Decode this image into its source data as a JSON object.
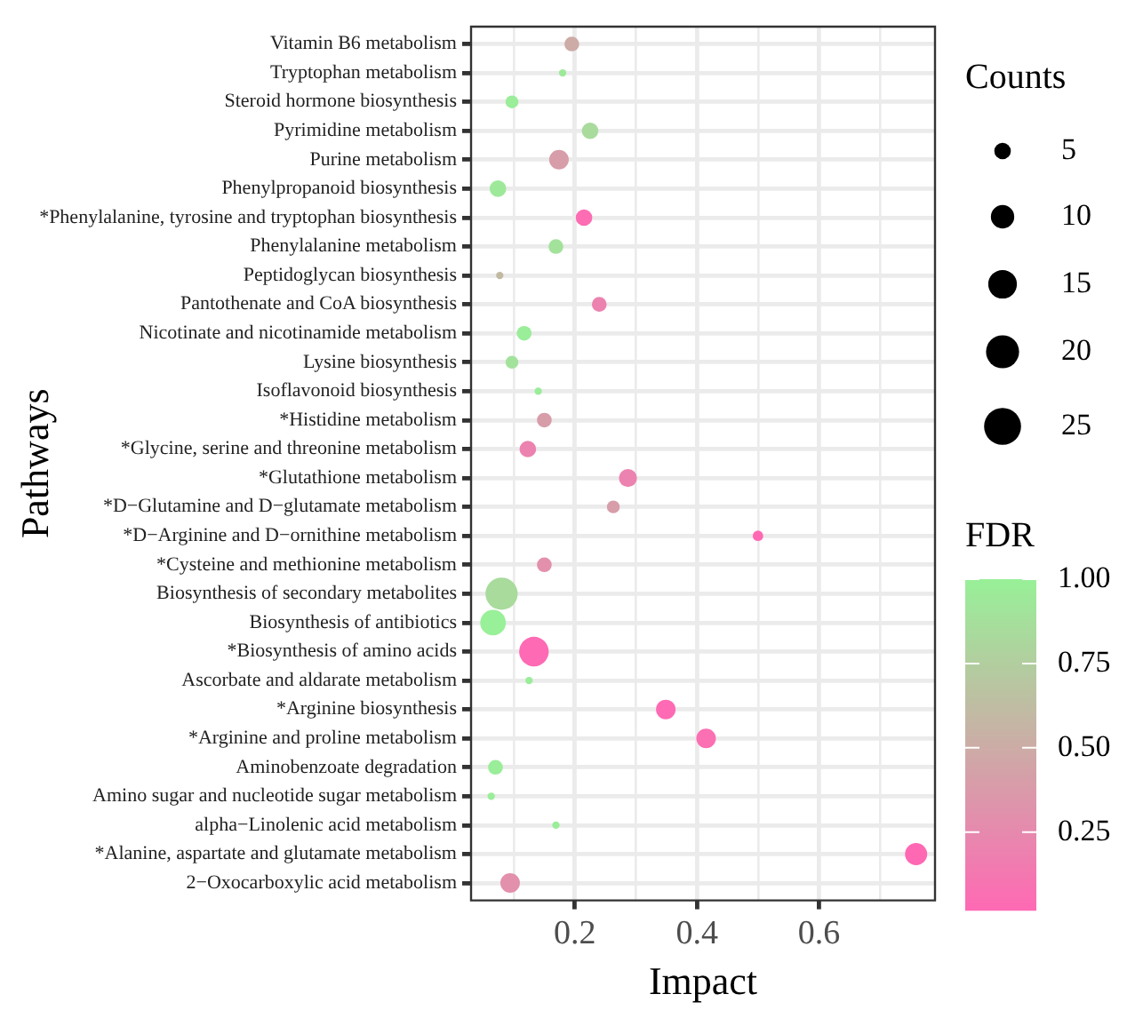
{
  "chart_data": {
    "type": "bubble",
    "xlabel": "Impact",
    "ylabel": "Pathways",
    "legend_title": "Counts",
    "clabel": "FDR",
    "categories": [
      "Vitamin B6 metabolism",
      "Tryptophan metabolism",
      "Steroid hormone biosynthesis",
      "Pyrimidine metabolism",
      "Purine metabolism",
      "Phenylpropanoid biosynthesis",
      "*Phenylalanine, tyrosine and tryptophan biosynthesis",
      "Phenylalanine metabolism",
      "Peptidoglycan biosynthesis",
      "Pantothenate and CoA biosynthesis",
      "Nicotinate and nicotinamide metabolism",
      "Lysine biosynthesis",
      "Isoflavonoid biosynthesis",
      "*Histidine metabolism",
      "*Glycine, serine and threonine metabolism",
      "*Glutathione metabolism",
      "*D−Glutamine and D−glutamate metabolism",
      "*D−Arginine and D−ornithine metabolism",
      "*Cysteine and methionine metabolism",
      "Biosynthesis of secondary metabolites",
      "Biosynthesis of antibiotics",
      "*Biosynthesis of amino acids",
      "Ascorbate and aldarate metabolism",
      "*Arginine biosynthesis",
      "*Arginine and proline metabolism",
      "Aminobenzoate degradation",
      "Amino sugar and nucleotide sugar metabolism",
      "alpha−Linolenic acid metabolism",
      "*Alanine, aspartate and glutamate metabolism",
      "2−Oxocarboxylic acid metabolism"
    ],
    "orientation": "horizontal",
    "values": [
      0.195,
      0.18,
      0.097,
      0.225,
      0.174,
      0.074,
      0.215,
      0.169,
      0.077,
      0.24,
      0.117,
      0.097,
      0.14,
      0.15,
      0.123,
      0.287,
      0.263,
      0.5,
      0.15,
      0.08,
      0.066,
      0.133,
      0.125,
      0.349,
      0.415,
      0.07,
      0.063,
      0.169,
      0.759,
      0.094
    ],
    "sizes": [
      4,
      1,
      3,
      5,
      7,
      5,
      5,
      4,
      1,
      4,
      4,
      3,
      1,
      4,
      5,
      6,
      3,
      2,
      4,
      19,
      12,
      16,
      1,
      7,
      7,
      4,
      1,
      1,
      9,
      7
    ],
    "cvalues": [
      0.5,
      0.95,
      0.98,
      0.85,
      0.4,
      0.95,
      0.05,
      0.9,
      0.6,
      0.2,
      0.98,
      0.9,
      0.98,
      0.4,
      0.2,
      0.2,
      0.4,
      0.02,
      0.3,
      0.85,
      1.0,
      0.03,
      0.98,
      0.03,
      0.06,
      0.98,
      0.98,
      0.98,
      0.02,
      0.3
    ],
    "clim": [
      0.02,
      1.0
    ],
    "cticks": [
      {
        "value": 0.25,
        "label": "0.25"
      },
      {
        "value": 0.5,
        "label": "0.50"
      },
      {
        "value": 0.75,
        "label": "0.75"
      },
      {
        "value": 1.0,
        "label": "1.00"
      }
    ],
    "size_legend": [
      5,
      10,
      15,
      20,
      25
    ],
    "xlim": [
      0.03,
      0.79
    ],
    "xticks": [
      {
        "value": 0.1,
        "label": null
      },
      0.2,
      {
        "value": 0.3,
        "label": null
      },
      0.4,
      {
        "value": 0.5,
        "label": null
      },
      0.6,
      {
        "value": 0.7,
        "label": null
      }
    ],
    "grid": true
  }
}
